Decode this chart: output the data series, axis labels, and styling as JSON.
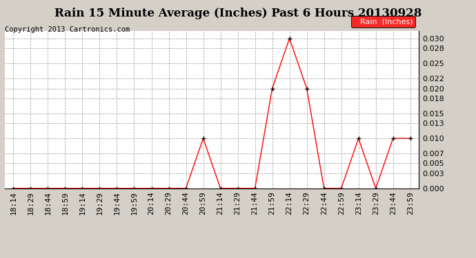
{
  "title": "Rain 15 Minute Average (Inches) Past 6 Hours 20130928",
  "copyright": "Copyright 2013 Cartronics.com",
  "legend_label": "Rain  (Inches)",
  "legend_bg": "#ff0000",
  "legend_text_color": "#ffffff",
  "x_labels": [
    "18:14",
    "18:29",
    "18:44",
    "18:59",
    "19:14",
    "19:29",
    "19:44",
    "19:59",
    "20:14",
    "20:29",
    "20:44",
    "20:59",
    "21:14",
    "21:29",
    "21:44",
    "21:59",
    "22:14",
    "22:29",
    "22:44",
    "22:59",
    "23:14",
    "23:29",
    "23:44",
    "23:59"
  ],
  "y_values": [
    0.0,
    0.0,
    0.0,
    0.0,
    0.0,
    0.0,
    0.0,
    0.0,
    0.0,
    0.0,
    0.0,
    0.01,
    0.0,
    0.0,
    0.0,
    0.02,
    0.03,
    0.02,
    0.0,
    0.0,
    0.01,
    0.0,
    0.01,
    0.01
  ],
  "y_ticks": [
    0.0,
    0.003,
    0.005,
    0.007,
    0.01,
    0.013,
    0.015,
    0.018,
    0.02,
    0.022,
    0.025,
    0.028,
    0.03
  ],
  "line_color": "#ff0000",
  "marker_color": "#000000",
  "bg_color": "#d4d0c8",
  "plot_bg_color": "#ffffff",
  "grid_color": "#aaaaaa",
  "title_fontsize": 12,
  "copyright_fontsize": 7.5,
  "tick_fontsize": 8,
  "legend_fontsize": 8,
  "ylim": [
    0.0,
    0.0315
  ]
}
